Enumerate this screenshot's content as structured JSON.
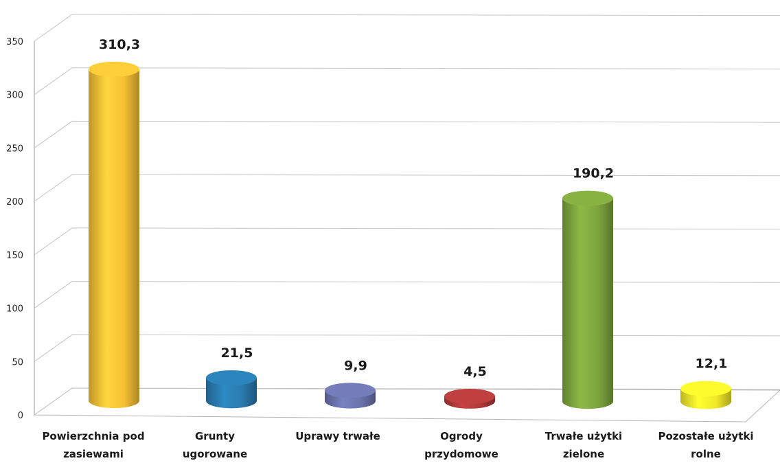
{
  "chart_data": {
    "type": "bar",
    "style": "3d-cylinder",
    "categories": [
      [
        "Powierzchnia pod",
        "zasiewami"
      ],
      [
        "Grunty",
        "ugorowane"
      ],
      [
        "Uprawy trwałe"
      ],
      [
        "Ogrody",
        "przydomowe"
      ],
      [
        "Trwałe użytki",
        "zielone"
      ],
      [
        "Pozostałe użytki",
        "rolne"
      ]
    ],
    "values": [
      310.3,
      21.5,
      9.9,
      4.5,
      190.2,
      12.1
    ],
    "value_labels": [
      "310,3",
      "21,5",
      "9,9",
      "4,5",
      "190,2",
      "12,1"
    ],
    "colors": [
      "#f6c035",
      "#2a7bb0",
      "#6c74ad",
      "#b23b3a",
      "#7ea63e",
      "#f2e92a"
    ],
    "yticks": [
      0,
      50,
      100,
      150,
      200,
      250,
      300,
      350
    ],
    "ylim": [
      0,
      350
    ],
    "grid": true,
    "legend": "none",
    "title": "",
    "xlabel": "",
    "ylabel": ""
  }
}
